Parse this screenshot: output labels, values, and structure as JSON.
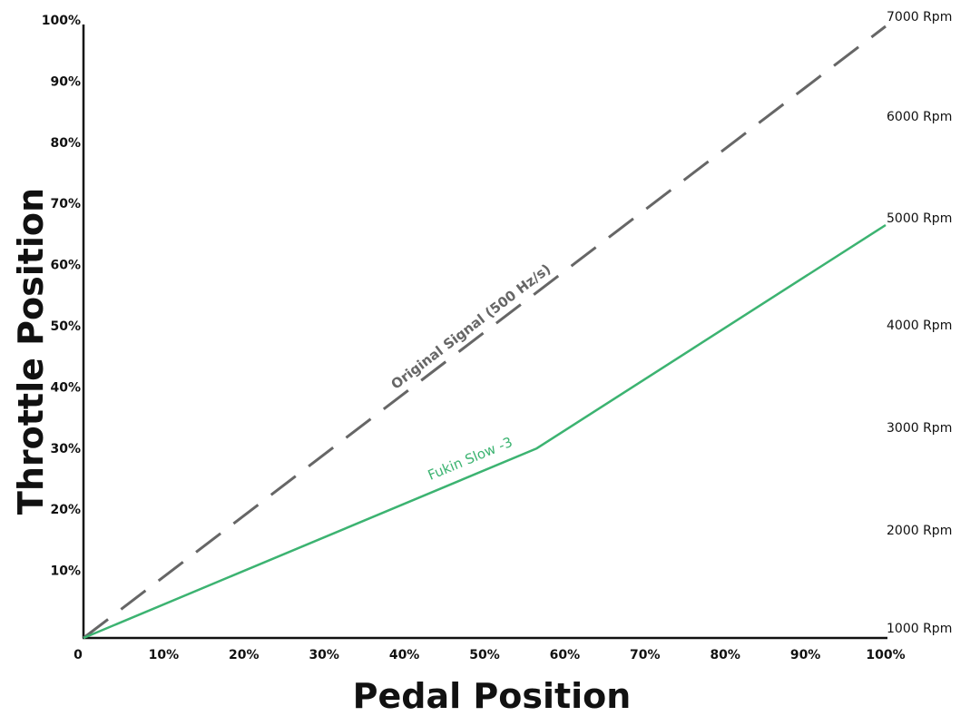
{
  "chart_data": {
    "type": "line",
    "title": "",
    "xlabel": "Pedal Position",
    "ylabel": "Throttle Position",
    "xlim": [
      0,
      100
    ],
    "ylim": [
      0,
      100
    ],
    "x_ticks": [
      "0",
      "10%",
      "20%",
      "30%",
      "40%",
      "50%",
      "60%",
      "70%",
      "80%",
      "90%",
      "100%"
    ],
    "y_ticks": [
      "10%",
      "20%",
      "30%",
      "40%",
      "50%",
      "60%",
      "70%",
      "80%",
      "90%",
      "100%"
    ],
    "secondary_axis": {
      "position": "right",
      "range": [
        1000,
        7000
      ],
      "labels": [
        {
          "value": 1000,
          "label": "1000 Rpm"
        },
        {
          "value": 2000,
          "label": "2000 Rpm"
        },
        {
          "value": 3000,
          "label": "3000 Rpm"
        },
        {
          "value": 4000,
          "label": "4000 Rpm"
        },
        {
          "value": 5000,
          "label": "5000 Rpm"
        },
        {
          "value": 6000,
          "label": "6000 Rpm"
        },
        {
          "value": 7000,
          "label": "7000 Rpm"
        }
      ]
    },
    "grid": false,
    "legend": "none",
    "series": [
      {
        "name": "Original Signal (500 Hz/s)",
        "style": "dashed",
        "color": "#666666",
        "x": [
          0,
          100
        ],
        "y": [
          0,
          100
        ]
      },
      {
        "name": "Fukin Slow -3",
        "style": "solid",
        "color": "#3cb371",
        "x": [
          0,
          56.5,
          100
        ],
        "y": [
          0,
          31,
          67.5
        ]
      }
    ]
  }
}
